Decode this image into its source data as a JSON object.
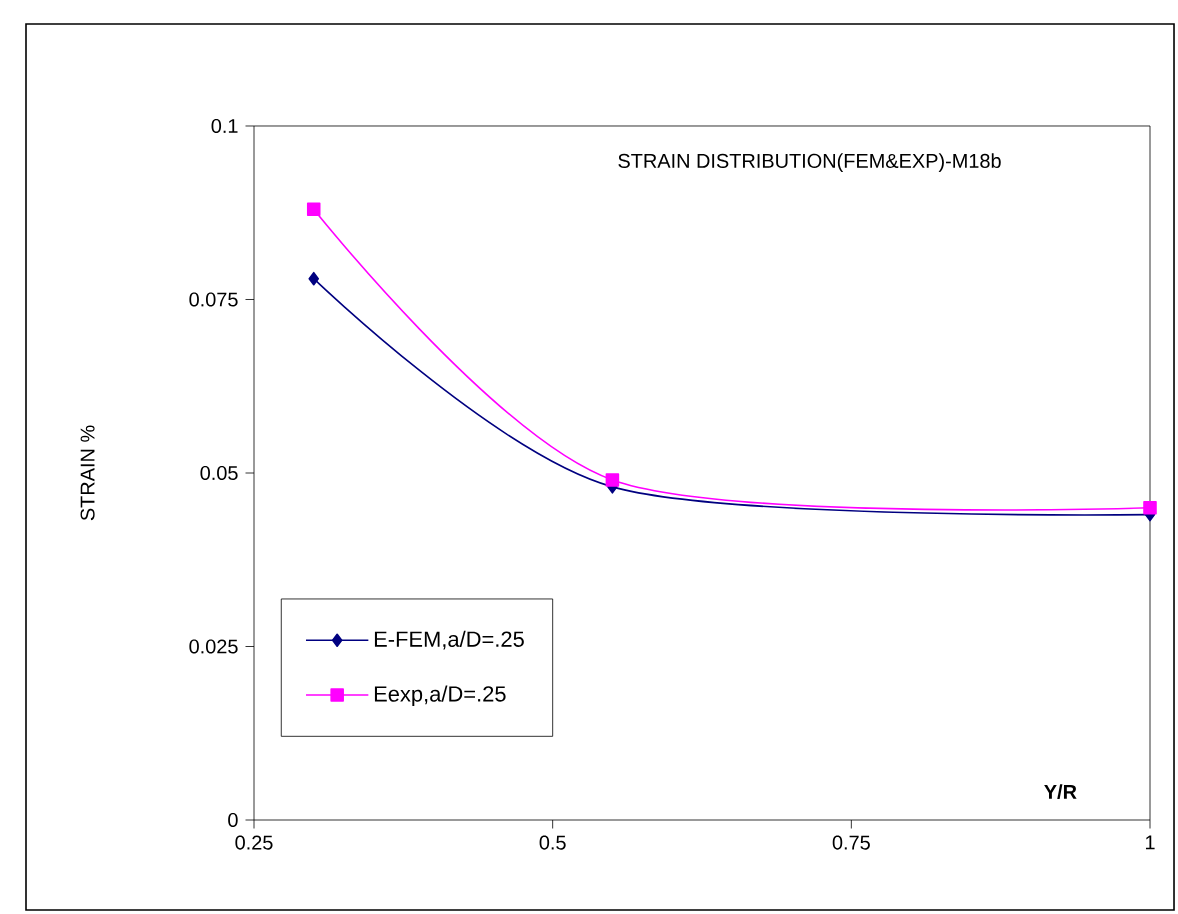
{
  "chart_data": {
    "type": "line",
    "title": "STRAIN DISTRIBUTION(FEM&EXP)-M18b",
    "xlabel": "Y/R",
    "ylabel": "STRAIN %",
    "x": [
      0.3,
      0.55,
      1
    ],
    "series": [
      {
        "name": "E-FEM,a/D=.25",
        "color": "#000080",
        "marker": "diamond",
        "values": [
          0.078,
          0.048,
          0.044
        ]
      },
      {
        "name": "Eexp,a/D=.25",
        "color": "#ff00ff",
        "marker": "square",
        "values": [
          0.088,
          0.049,
          0.045
        ]
      }
    ],
    "xlim": [
      0.25,
      1
    ],
    "xticks": [
      0.25,
      0.5,
      0.75,
      1
    ],
    "ylim": [
      0,
      0.1
    ],
    "yticks": [
      0,
      0.025,
      0.05,
      0.075,
      0.1
    ],
    "grid": false,
    "legend": "bottom left",
    "line_style": "solid"
  }
}
